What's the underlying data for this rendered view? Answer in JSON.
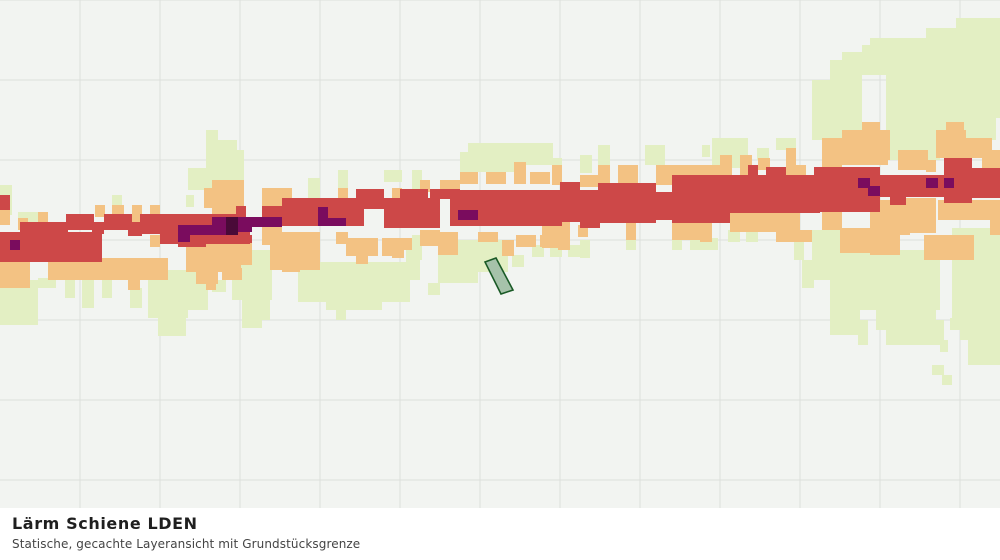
{
  "map": {
    "layer_title": "Lärm Schiene LDEN",
    "layer_subtitle": "Statische, gecachte Layeransicht mit Grundstücksgrenze",
    "colors": {
      "background": "#f2f4f1",
      "grid": "#dcdfdc",
      "light_green": "#e3efc3",
      "orange": "#f3c283",
      "red": "#cd4848",
      "purple": "#7a0c5e",
      "dark_purple": "#4a0a38",
      "parcel_fill": "#a6c2aa",
      "parcel_stroke": "#1a5a26"
    }
  }
}
